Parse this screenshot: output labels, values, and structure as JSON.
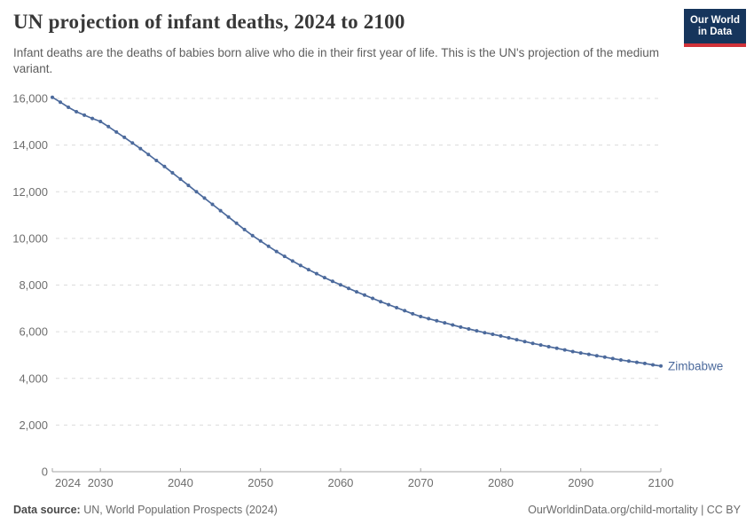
{
  "header": {
    "title": "UN projection of infant deaths, 2024 to 2100",
    "subtitle": "Infant deaths are the deaths of babies born alive who die in their first year of life. This is the UN's projection of the medium variant.",
    "logo": {
      "line1": "Our World",
      "line2": "in Data",
      "bg_color": "#16355c",
      "accent_color": "#d13239"
    }
  },
  "chart_data": {
    "type": "line",
    "title": "UN projection of infant deaths, 2024 to 2100",
    "xlabel": "",
    "ylabel": "",
    "xlim": [
      2024,
      2100
    ],
    "ylim": [
      0,
      16000
    ],
    "grid": "horizontal-dashed",
    "legend_position": "end-of-line-label",
    "colors": {
      "line": "#4c6a9c",
      "gridline": "#dcdcdc",
      "axis": "#a3a3a3",
      "tick_text": "#6e6e6e",
      "entity_label": "#4c6a9c"
    },
    "x_ticks": {
      "values": [
        2024,
        2030,
        2040,
        2050,
        2060,
        2070,
        2080,
        2090,
        2100
      ],
      "labels": [
        "2024",
        "2030",
        "2040",
        "2050",
        "2060",
        "2070",
        "2080",
        "2090",
        "2100"
      ]
    },
    "y_ticks": {
      "values": [
        0,
        2000,
        4000,
        6000,
        8000,
        10000,
        12000,
        14000,
        16000
      ],
      "labels": [
        "0",
        "2,000",
        "4,000",
        "6,000",
        "8,000",
        "10,000",
        "12,000",
        "14,000",
        "16,000"
      ]
    },
    "series": [
      {
        "name": "Zimbabwe",
        "x": [
          2024,
          2025,
          2026,
          2027,
          2028,
          2029,
          2030,
          2031,
          2032,
          2033,
          2034,
          2035,
          2036,
          2037,
          2038,
          2039,
          2040,
          2041,
          2042,
          2043,
          2044,
          2045,
          2046,
          2047,
          2048,
          2049,
          2050,
          2051,
          2052,
          2053,
          2054,
          2055,
          2056,
          2057,
          2058,
          2059,
          2060,
          2061,
          2062,
          2063,
          2064,
          2065,
          2066,
          2067,
          2068,
          2069,
          2070,
          2071,
          2072,
          2073,
          2074,
          2075,
          2076,
          2077,
          2078,
          2079,
          2080,
          2081,
          2082,
          2083,
          2084,
          2085,
          2086,
          2087,
          2088,
          2089,
          2090,
          2091,
          2092,
          2093,
          2094,
          2095,
          2096,
          2097,
          2098,
          2099,
          2100
        ],
        "values": [
          16050,
          15840,
          15620,
          15430,
          15280,
          15140,
          15010,
          14790,
          14560,
          14330,
          14090,
          13850,
          13600,
          13340,
          13080,
          12810,
          12540,
          12270,
          12000,
          11730,
          11460,
          11190,
          10920,
          10650,
          10380,
          10120,
          9890,
          9660,
          9440,
          9230,
          9030,
          8840,
          8660,
          8490,
          8320,
          8160,
          8010,
          7860,
          7710,
          7570,
          7430,
          7290,
          7160,
          7030,
          6900,
          6770,
          6650,
          6560,
          6470,
          6380,
          6290,
          6200,
          6120,
          6040,
          5960,
          5890,
          5820,
          5740,
          5660,
          5580,
          5500,
          5430,
          5360,
          5290,
          5220,
          5150,
          5090,
          5030,
          4970,
          4910,
          4850,
          4790,
          4740,
          4690,
          4640,
          4580,
          4530
        ]
      }
    ]
  },
  "footer": {
    "source_label": "Data source:",
    "source_text": "UN, World Population Prospects (2024)",
    "credit": "OurWorldinData.org/child-mortality | CC BY"
  }
}
